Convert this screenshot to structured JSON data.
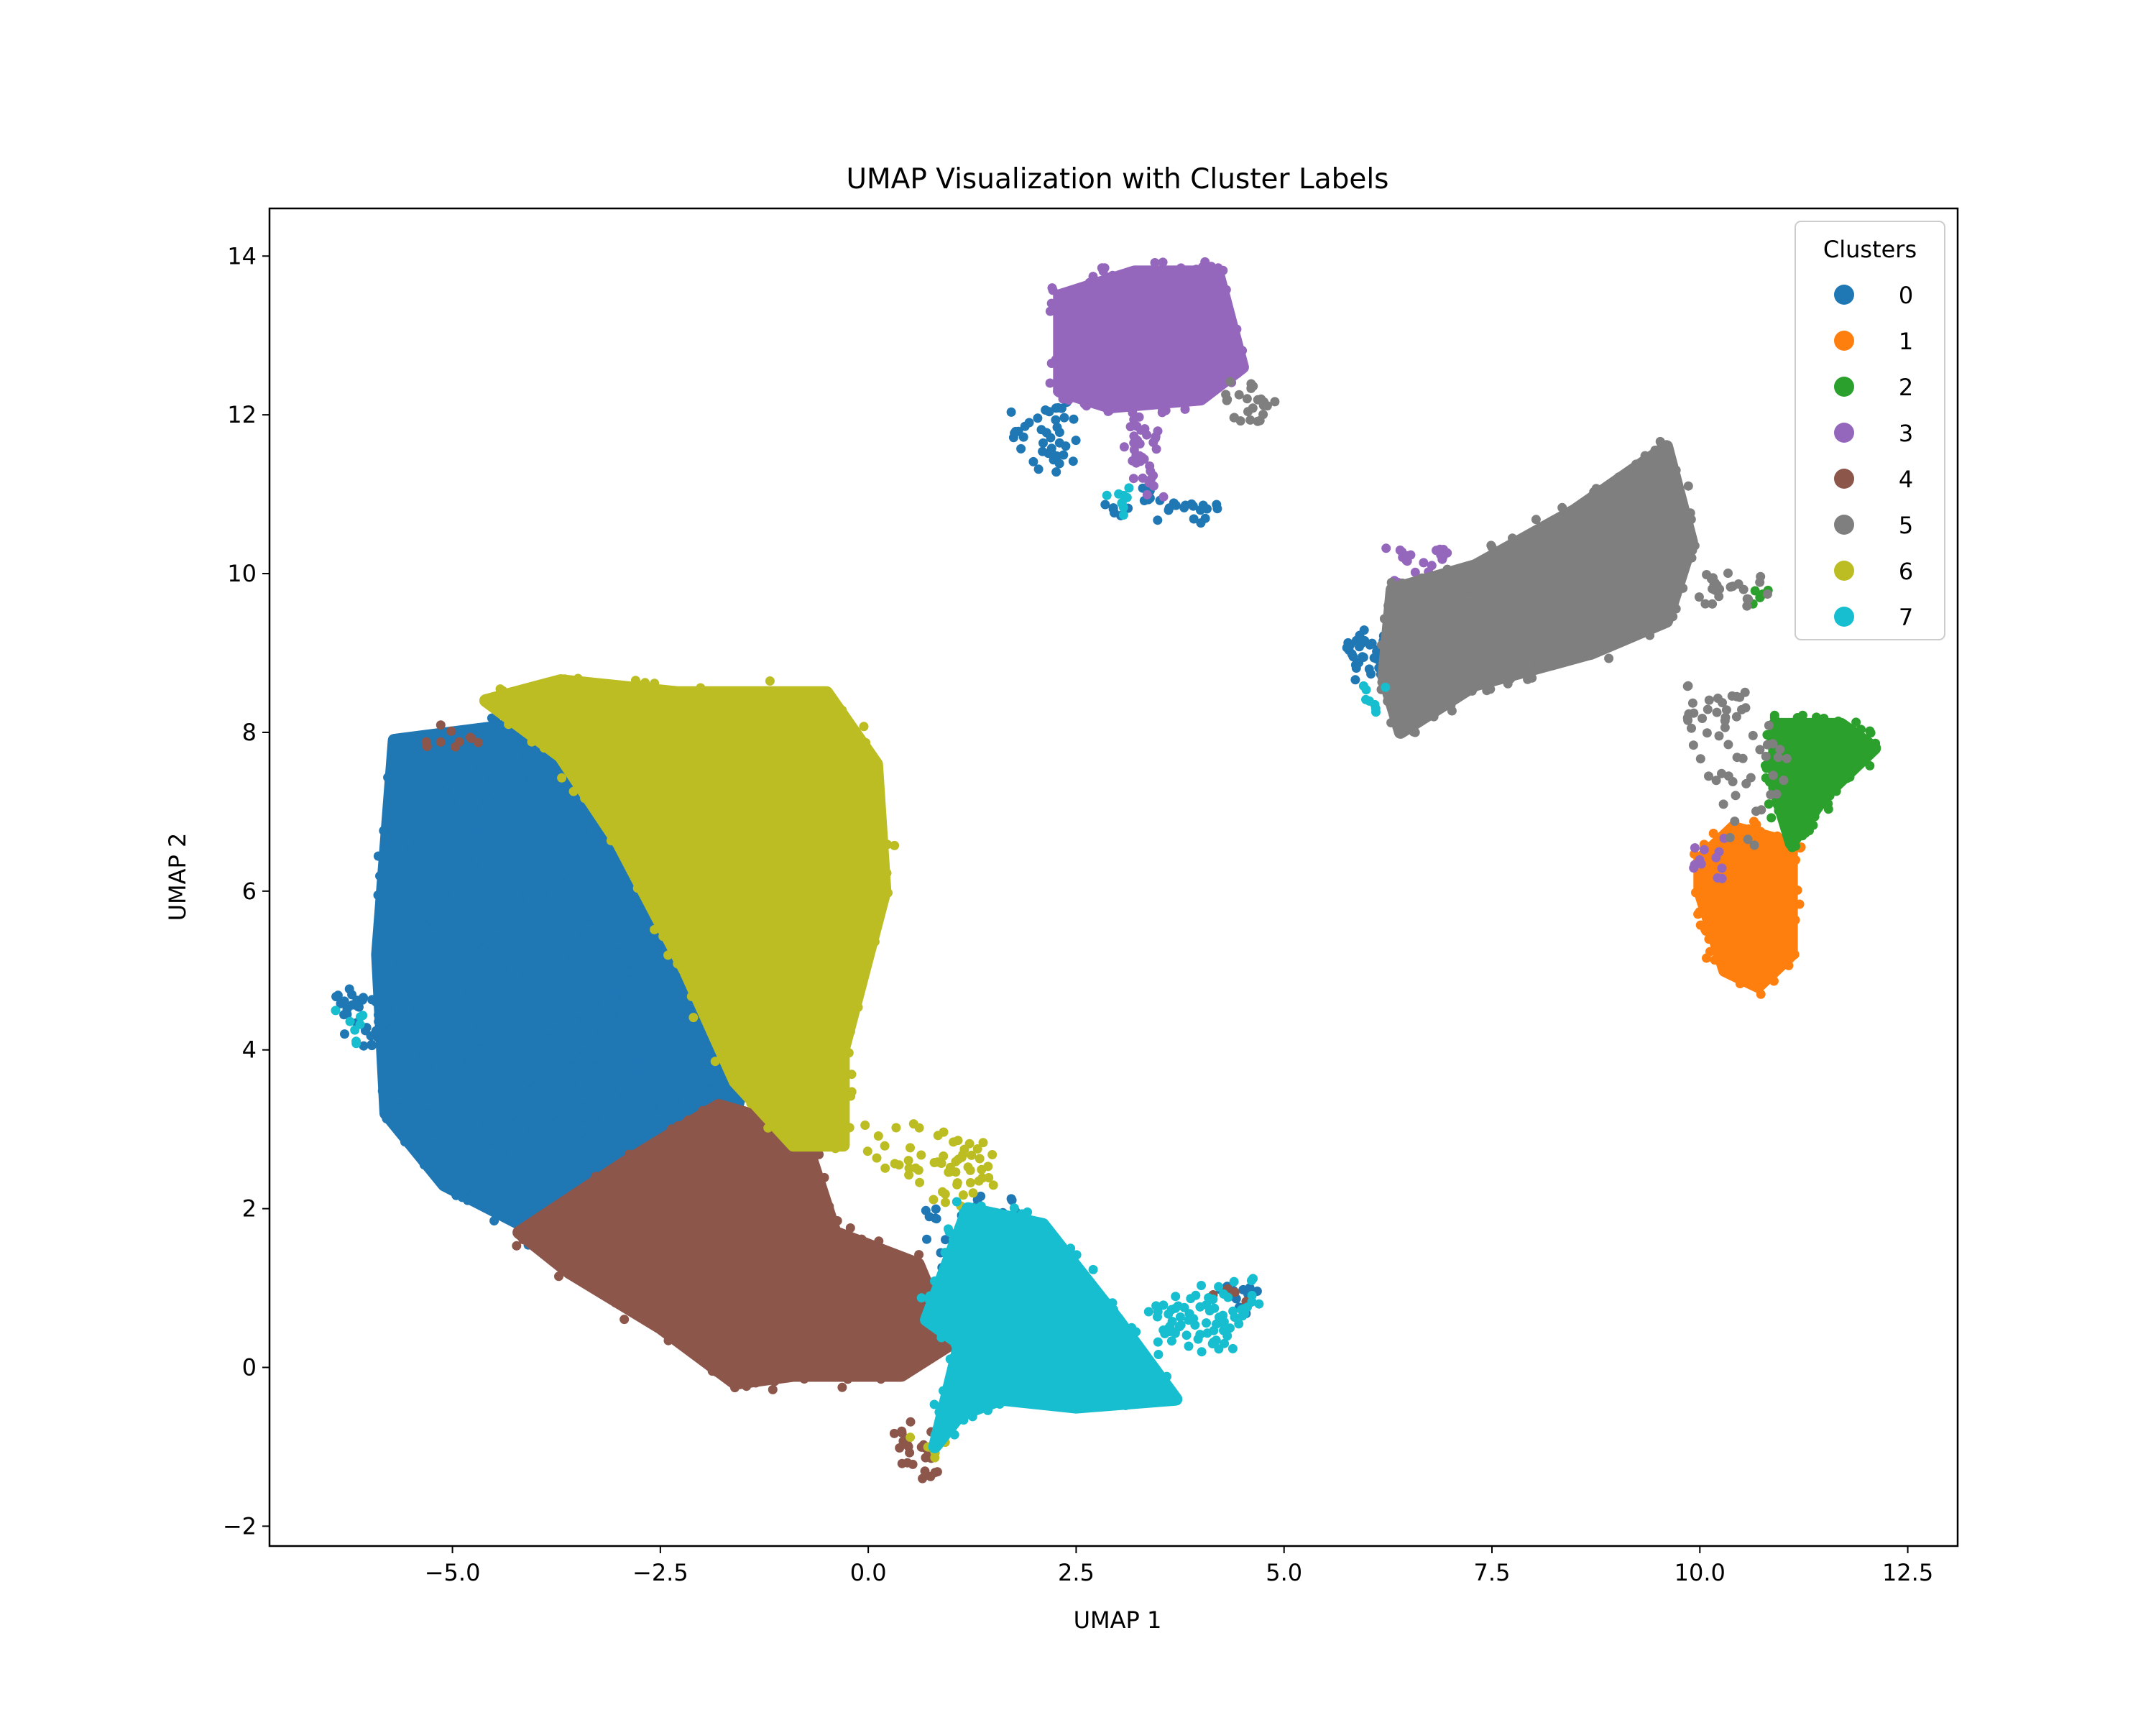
{
  "chart_data": {
    "type": "scatter",
    "title": "UMAP Visualization with Cluster Labels",
    "xlabel": "UMAP 1",
    "ylabel": "UMAP 2",
    "xlim": [
      -7.2,
      13.1
    ],
    "ylim": [
      -2.25,
      14.6
    ],
    "xticks": [
      -5.0,
      -2.5,
      0.0,
      2.5,
      5.0,
      7.5,
      10.0,
      12.5
    ],
    "xtick_labels": [
      "−5.0",
      "−2.5",
      "0.0",
      "2.5",
      "5.0",
      "7.5",
      "10.0",
      "12.5"
    ],
    "yticks": [
      -2,
      0,
      2,
      4,
      6,
      8,
      10,
      12,
      14
    ],
    "ytick_labels": [
      "−2",
      "0",
      "2",
      "4",
      "6",
      "8",
      "10",
      "12",
      "14"
    ],
    "grid": false,
    "legend": {
      "title": "Clusters",
      "position": "top-right"
    },
    "series": [
      {
        "name": "0",
        "color": "#1f77b4",
        "regions": [
          {
            "points": [
              [
                -5.7,
                7.9
              ],
              [
                -4.2,
                8.1
              ],
              [
                -2.9,
                7.0
              ],
              [
                -1.9,
                5.6
              ],
              [
                -1.4,
                4.0
              ],
              [
                -1.7,
                2.8
              ],
              [
                -2.6,
                2.0
              ],
              [
                -3.8,
                1.6
              ],
              [
                -5.1,
                2.3
              ],
              [
                -5.8,
                3.2
              ],
              [
                -5.9,
                5.2
              ]
            ],
            "density": 1300,
            "seed": 11
          },
          {
            "points": [
              [
                -6.3,
                4.7
              ],
              [
                -5.9,
                4.7
              ],
              [
                -5.9,
                4.1
              ],
              [
                -6.3,
                4.2
              ]
            ],
            "density": 30,
            "seed": 12
          },
          {
            "points": [
              [
                1.7,
                11.9
              ],
              [
                2.3,
                12.1
              ],
              [
                2.4,
                11.4
              ],
              [
                1.8,
                11.5
              ]
            ],
            "density": 40,
            "seed": 13
          },
          {
            "points": [
              [
                2.8,
                10.9
              ],
              [
                3.3,
                11.0
              ],
              [
                4.4,
                10.8
              ],
              [
                3.0,
                10.7
              ]
            ],
            "density": 30,
            "seed": 14
          },
          {
            "points": [
              [
                5.7,
                9.1
              ],
              [
                6.5,
                9.5
              ],
              [
                6.5,
                8.7
              ],
              [
                5.9,
                8.8
              ]
            ],
            "density": 60,
            "seed": 15
          },
          {
            "points": [
              [
                0.7,
                2.0
              ],
              [
                1.7,
                2.2
              ],
              [
                1.8,
                1.0
              ],
              [
                0.9,
                1.2
              ]
            ],
            "density": 60,
            "seed": 16
          },
          {
            "points": [
              [
                4.2,
                1.1
              ],
              [
                4.8,
                1.0
              ],
              [
                4.5,
                0.7
              ]
            ],
            "density": 15,
            "seed": 17
          }
        ]
      },
      {
        "name": "1",
        "color": "#ff7f0e",
        "regions": [
          {
            "points": [
              [
                10.0,
                6.4
              ],
              [
                10.4,
                6.8
              ],
              [
                11.1,
                6.6
              ],
              [
                11.1,
                5.2
              ],
              [
                10.7,
                4.8
              ],
              [
                10.3,
                5.0
              ],
              [
                10.0,
                6.0
              ]
            ],
            "density": 400,
            "seed": 21
          }
        ]
      },
      {
        "name": "2",
        "color": "#2ca02c",
        "regions": [
          {
            "points": [
              [
                10.9,
                8.1
              ],
              [
                11.7,
                8.1
              ],
              [
                12.1,
                7.8
              ],
              [
                11.5,
                7.2
              ],
              [
                11.1,
                6.6
              ],
              [
                10.9,
                7.3
              ]
            ],
            "density": 300,
            "seed": 31
          },
          {
            "points": [
              [
                10.6,
                9.8
              ],
              [
                10.8,
                9.8
              ],
              [
                10.8,
                9.6
              ],
              [
                10.6,
                9.6
              ]
            ],
            "density": 6,
            "seed": 32
          }
        ]
      },
      {
        "name": "3",
        "color": "#9467bd",
        "regions": [
          {
            "points": [
              [
                2.3,
                13.5
              ],
              [
                3.2,
                13.8
              ],
              [
                4.2,
                13.8
              ],
              [
                4.5,
                12.6
              ],
              [
                4.0,
                12.2
              ],
              [
                2.9,
                12.1
              ],
              [
                2.3,
                12.3
              ]
            ],
            "density": 550,
            "seed": 41
          },
          {
            "points": [
              [
                3.1,
                12.0
              ],
              [
                3.3,
                12.0
              ],
              [
                3.5,
                11.0
              ],
              [
                3.3,
                11.0
              ]
            ],
            "density": 35,
            "seed": 42
          },
          {
            "points": [
              [
                6.3,
                10.3
              ],
              [
                7.0,
                10.3
              ],
              [
                6.8,
                9.7
              ],
              [
                6.3,
                9.8
              ]
            ],
            "density": 30,
            "seed": 43
          },
          {
            "points": [
              [
                10.0,
                6.4
              ],
              [
                10.3,
                6.6
              ],
              [
                10.2,
                6.2
              ],
              [
                9.9,
                6.2
              ]
            ],
            "density": 12,
            "seed": 44
          }
        ]
      },
      {
        "name": "4",
        "color": "#8c564b",
        "regions": [
          {
            "points": [
              [
                -4.2,
                1.7
              ],
              [
                -2.9,
                2.6
              ],
              [
                -1.8,
                3.3
              ],
              [
                -0.8,
                3.0
              ],
              [
                -0.4,
                1.7
              ],
              [
                0.6,
                1.3
              ],
              [
                1.0,
                0.3
              ],
              [
                0.4,
                -0.1
              ],
              [
                -0.9,
                -0.1
              ],
              [
                -1.6,
                -0.2
              ],
              [
                -2.5,
                0.5
              ],
              [
                -3.6,
                1.2
              ]
            ],
            "density": 900,
            "seed": 51
          },
          {
            "points": [
              [
                0.3,
                -0.8
              ],
              [
                0.7,
                -0.8
              ],
              [
                0.8,
                -1.4
              ],
              [
                0.5,
                -1.3
              ]
            ],
            "density": 25,
            "seed": 52
          },
          {
            "points": [
              [
                4.2,
                1.1
              ],
              [
                4.5,
                1.1
              ],
              [
                4.4,
                0.9
              ]
            ],
            "density": 5,
            "seed": 53
          },
          {
            "points": [
              [
                -5.4,
                8.0
              ],
              [
                -4.7,
                8.1
              ],
              [
                -4.8,
                7.7
              ]
            ],
            "density": 10,
            "seed": 54
          }
        ]
      },
      {
        "name": "5",
        "color": "#7f7f7f",
        "regions": [
          {
            "points": [
              [
                6.3,
                9.8
              ],
              [
                7.3,
                10.1
              ],
              [
                8.5,
                10.8
              ],
              [
                9.6,
                11.6
              ],
              [
                9.9,
                10.4
              ],
              [
                9.6,
                9.4
              ],
              [
                8.7,
                9.0
              ],
              [
                7.3,
                8.6
              ],
              [
                6.4,
                8.0
              ],
              [
                6.2,
                8.7
              ]
            ],
            "density": 900,
            "seed": 61
          },
          {
            "points": [
              [
                10.0,
                9.9
              ],
              [
                10.8,
                9.9
              ],
              [
                10.7,
                9.7
              ],
              [
                10.0,
                9.7
              ]
            ],
            "density": 25,
            "seed": 62
          },
          {
            "points": [
              [
                9.8,
                8.6
              ],
              [
                10.8,
                8.4
              ],
              [
                11.0,
                7.5
              ],
              [
                10.6,
                6.6
              ],
              [
                10.0,
                7.5
              ]
            ],
            "density": 60,
            "seed": 63
          },
          {
            "points": [
              [
                4.3,
                12.3
              ],
              [
                4.8,
                12.3
              ],
              [
                4.8,
                12.0
              ],
              [
                4.3,
                12.0
              ]
            ],
            "density": 25,
            "seed": 64
          }
        ]
      },
      {
        "name": "6",
        "color": "#bcbd22",
        "regions": [
          {
            "points": [
              [
                -4.6,
                8.4
              ],
              [
                -3.7,
                8.65
              ],
              [
                -2.3,
                8.5
              ],
              [
                -0.5,
                8.5
              ],
              [
                0.1,
                7.6
              ],
              [
                0.2,
                6.0
              ],
              [
                -0.3,
                4.0
              ],
              [
                -0.3,
                2.8
              ],
              [
                -0.9,
                2.8
              ],
              [
                -1.6,
                3.6
              ],
              [
                -2.2,
                5.0
              ],
              [
                -3.0,
                6.6
              ],
              [
                -3.7,
                7.7
              ]
            ],
            "density": 1100,
            "seed": 71
          },
          {
            "points": [
              [
                0.0,
                3.1
              ],
              [
                0.6,
                3.1
              ],
              [
                0.8,
                2.4
              ],
              [
                0.3,
                2.4
              ]
            ],
            "density": 20,
            "seed": 72
          },
          {
            "points": [
              [
                0.8,
                2.9
              ],
              [
                1.4,
                2.8
              ],
              [
                1.5,
                2.1
              ],
              [
                0.8,
                2.2
              ]
            ],
            "density": 40,
            "seed": 73
          },
          {
            "points": [
              [
                0.6,
                -0.9
              ],
              [
                1.0,
                -0.9
              ],
              [
                0.9,
                -1.2
              ]
            ],
            "density": 6,
            "seed": 74
          }
        ]
      },
      {
        "name": "7",
        "color": "#17becf",
        "regions": [
          {
            "points": [
              [
                1.2,
                2.0
              ],
              [
                2.1,
                1.8
              ],
              [
                3.0,
                0.6
              ],
              [
                3.7,
                -0.4
              ],
              [
                2.5,
                -0.5
              ],
              [
                1.6,
                -0.4
              ],
              [
                1.1,
                -0.6
              ],
              [
                0.8,
                -1.0
              ],
              [
                1.1,
                0.3
              ],
              [
                0.7,
                0.6
              ]
            ],
            "density": 700,
            "seed": 81
          },
          {
            "points": [
              [
                3.4,
                0.7
              ],
              [
                4.2,
                1.0
              ],
              [
                4.7,
                1.0
              ],
              [
                4.4,
                0.4
              ],
              [
                3.9,
                0.3
              ],
              [
                3.5,
                0.4
              ]
            ],
            "density": 80,
            "seed": 82
          },
          {
            "points": [
              [
                -6.3,
                4.4
              ],
              [
                -6.0,
                4.5
              ],
              [
                -6.1,
                4.1
              ]
            ],
            "density": 8,
            "seed": 83
          },
          {
            "points": [
              [
                5.9,
                8.5
              ],
              [
                6.2,
                8.5
              ],
              [
                6.1,
                8.1
              ]
            ],
            "density": 8,
            "seed": 84
          },
          {
            "points": [
              [
                2.9,
                11.0
              ],
              [
                3.2,
                11.1
              ],
              [
                3.1,
                10.8
              ]
            ],
            "density": 8,
            "seed": 85
          }
        ]
      }
    ]
  }
}
